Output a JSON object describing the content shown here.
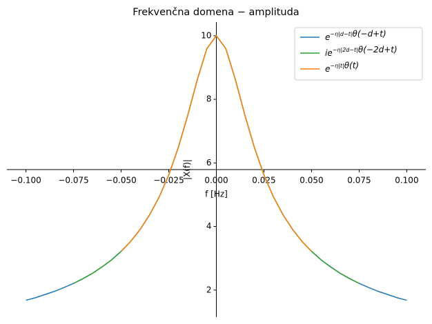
{
  "chart_data": {
    "type": "line",
    "title": "Frekvenčna domena − amplituda",
    "x_label": "f [Hz]",
    "y_label": "|X(f)|",
    "xlim": [
      -0.11,
      0.11
    ],
    "ylim": [
      1.15,
      10.43
    ],
    "xticks": [
      {
        "value": -0.1,
        "label": "−0.100"
      },
      {
        "value": -0.075,
        "label": "−0.075"
      },
      {
        "value": -0.05,
        "label": "−0.050"
      },
      {
        "value": -0.025,
        "label": "−0.025"
      },
      {
        "value": 0,
        "label": "0.000"
      },
      {
        "value": 0.025,
        "label": "0.025"
      },
      {
        "value": 0.05,
        "label": "0.050"
      },
      {
        "value": 0.075,
        "label": "0.075"
      },
      {
        "value": 0.1,
        "label": "0.100"
      }
    ],
    "yticks": [
      2,
      4,
      6,
      8,
      10
    ],
    "legend": "upper right",
    "series": [
      {
        "name": "e^{−η|d−t|}θ(−d+t)",
        "color": "#1f77b4",
        "x": [
          -0.1,
          -0.095,
          -0.09,
          -0.085,
          -0.08,
          -0.075,
          -0.07,
          -0.065,
          -0.06,
          -0.055,
          -0.05,
          -0.045,
          -0.04,
          -0.035,
          -0.03,
          -0.025,
          -0.02,
          -0.015,
          -0.01,
          -0.005,
          0,
          0.005,
          0.01,
          0.015,
          0.02,
          0.025,
          0.03,
          0.035,
          0.04,
          0.045,
          0.05,
          0.055,
          0.06,
          0.065,
          0.07,
          0.075,
          0.08,
          0.085,
          0.09,
          0.095,
          0.1
        ],
        "values": [
          1.68,
          1.76,
          1.86,
          1.96,
          2.08,
          2.21,
          2.36,
          2.53,
          2.73,
          2.95,
          3.22,
          3.53,
          3.91,
          4.37,
          4.93,
          5.62,
          6.48,
          7.5,
          8.62,
          9.59,
          10,
          9.59,
          8.62,
          7.5,
          6.48,
          5.62,
          4.93,
          4.37,
          3.91,
          3.53,
          3.22,
          2.95,
          2.73,
          2.53,
          2.36,
          2.21,
          2.08,
          1.96,
          1.86,
          1.76,
          1.68
        ]
      },
      {
        "name": "ie^{−η|2d−t|}θ(−2d+t)",
        "color": "#2ca02c",
        "x": [
          -0.075,
          -0.07,
          -0.065,
          -0.06,
          -0.055,
          -0.05,
          -0.045,
          -0.04,
          -0.035,
          -0.03,
          -0.025,
          -0.02,
          -0.015,
          -0.01,
          -0.005,
          0,
          0.005,
          0.01,
          0.015,
          0.02,
          0.025,
          0.03,
          0.035,
          0.04,
          0.045,
          0.05,
          0.055,
          0.06,
          0.065,
          0.07,
          0.075
        ],
        "values": [
          2.21,
          2.36,
          2.53,
          2.73,
          2.95,
          3.22,
          3.53,
          3.91,
          4.37,
          4.93,
          5.62,
          6.48,
          7.5,
          8.62,
          9.59,
          10,
          9.59,
          8.62,
          7.5,
          6.48,
          5.62,
          4.93,
          4.37,
          3.91,
          3.53,
          3.22,
          2.95,
          2.73,
          2.53,
          2.36,
          2.21
        ]
      },
      {
        "name": "e^{−η|t|}θ(t)",
        "color": "#ff7f0e",
        "x": [
          -0.05,
          -0.045,
          -0.04,
          -0.035,
          -0.03,
          -0.025,
          -0.02,
          -0.015,
          -0.01,
          -0.005,
          0,
          0.005,
          0.01,
          0.015,
          0.02,
          0.025,
          0.03,
          0.035,
          0.04,
          0.045,
          0.05
        ],
        "values": [
          3.22,
          3.53,
          3.91,
          4.37,
          4.93,
          5.62,
          6.48,
          7.5,
          8.62,
          9.59,
          10,
          9.59,
          8.62,
          7.5,
          6.48,
          5.62,
          4.93,
          4.37,
          3.91,
          3.53,
          3.22
        ]
      }
    ]
  }
}
